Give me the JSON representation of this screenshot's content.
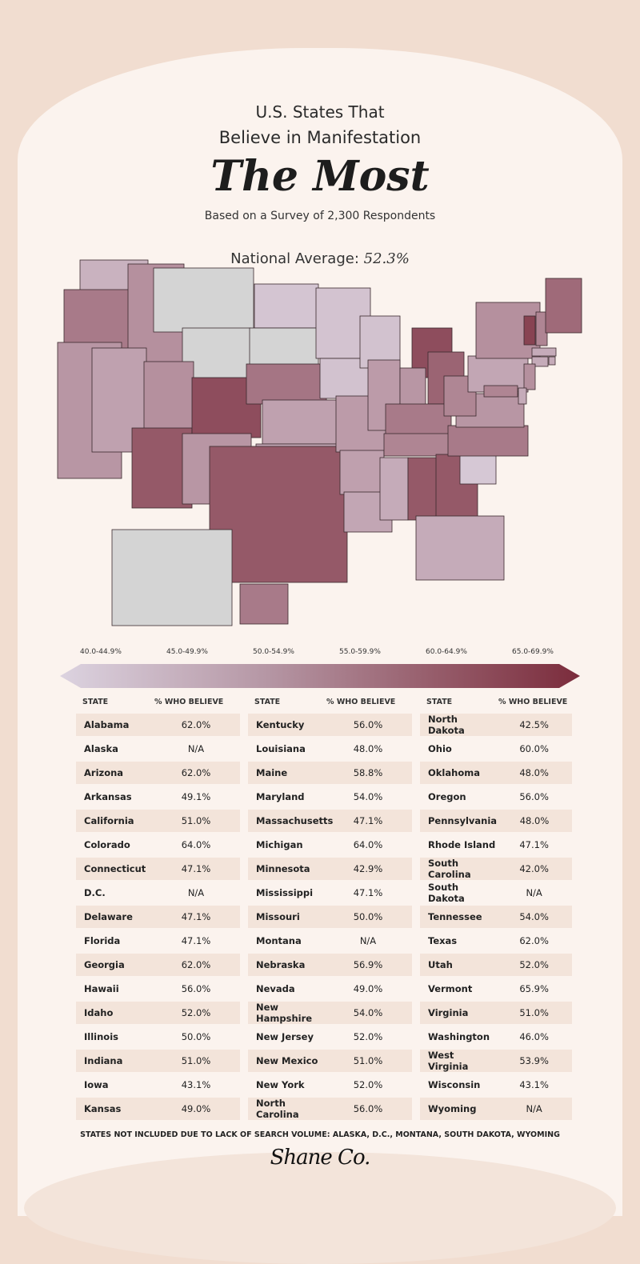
{
  "header": {
    "line1": "U.S. States That",
    "line2": "Believe in Manifestation",
    "line3": "The Most",
    "subtitle": "Based on a Survey of 2,300 Respondents",
    "national_label": "National Average:",
    "national_value": "52.3%"
  },
  "legend": {
    "ranges": [
      "40.0-44.9%",
      "45.0-49.9%",
      "50.0-54.9%",
      "55.0-59.9%",
      "60.0-64.9%",
      "65.0-69.9%"
    ],
    "color_low": "#dcd3e0",
    "color_high": "#7b2c3c",
    "na_color": "#d4d4d4"
  },
  "table": {
    "col_state": "STATE",
    "col_value": "% WHO BELIEVE",
    "rows": [
      [
        "Alabama",
        "62.0%"
      ],
      [
        "Alaska",
        "N/A"
      ],
      [
        "Arizona",
        "62.0%"
      ],
      [
        "Arkansas",
        "49.1%"
      ],
      [
        "California",
        "51.0%"
      ],
      [
        "Colorado",
        "64.0%"
      ],
      [
        "Connecticut",
        "47.1%"
      ],
      [
        "D.C.",
        "N/A"
      ],
      [
        "Delaware",
        "47.1%"
      ],
      [
        "Florida",
        "47.1%"
      ],
      [
        "Georgia",
        "62.0%"
      ],
      [
        "Hawaii",
        "56.0%"
      ],
      [
        "Idaho",
        "52.0%"
      ],
      [
        "Illinois",
        "50.0%"
      ],
      [
        "Indiana",
        "51.0%"
      ],
      [
        "Iowa",
        "43.1%"
      ],
      [
        "Kansas",
        "49.0%"
      ],
      [
        "Kentucky",
        "56.0%"
      ],
      [
        "Louisiana",
        "48.0%"
      ],
      [
        "Maine",
        "58.8%"
      ],
      [
        "Maryland",
        "54.0%"
      ],
      [
        "Massachusetts",
        "47.1%"
      ],
      [
        "Michigan",
        "64.0%"
      ],
      [
        "Minnesota",
        "42.9%"
      ],
      [
        "Mississippi",
        "47.1%"
      ],
      [
        "Missouri",
        "50.0%"
      ],
      [
        "Montana",
        "N/A"
      ],
      [
        "Nebraska",
        "56.9%"
      ],
      [
        "Nevada",
        "49.0%"
      ],
      [
        "New Hampshire",
        "54.0%"
      ],
      [
        "New Jersey",
        "52.0%"
      ],
      [
        "New Mexico",
        "51.0%"
      ],
      [
        "New York",
        "52.0%"
      ],
      [
        "North Carolina",
        "56.0%"
      ],
      [
        "North Dakota",
        "42.5%"
      ],
      [
        "Ohio",
        "60.0%"
      ],
      [
        "Oklahoma",
        "48.0%"
      ],
      [
        "Oregon",
        "56.0%"
      ],
      [
        "Pennsylvania",
        "48.0%"
      ],
      [
        "Rhode Island",
        "47.1%"
      ],
      [
        "South Carolina",
        "42.0%"
      ],
      [
        "South Dakota",
        "N/A"
      ],
      [
        "Tennessee",
        "54.0%"
      ],
      [
        "Texas",
        "62.0%"
      ],
      [
        "Utah",
        "52.0%"
      ],
      [
        "Vermont",
        "65.9%"
      ],
      [
        "Virginia",
        "51.0%"
      ],
      [
        "Washington",
        "46.0%"
      ],
      [
        "West Virginia",
        "53.9%"
      ],
      [
        "Wisconsin",
        "43.1%"
      ],
      [
        "Wyoming",
        "N/A"
      ]
    ]
  },
  "chart_data": {
    "type": "choropleth",
    "value_range": [
      40,
      70
    ],
    "source_table": "table.rows"
  },
  "footnote": "STATES NOT INCLUDED DUE TO LACK OF SEARCH VOLUME: ALASKA, D.C., MONTANA, SOUTH DAKOTA, WYOMING",
  "brand": "Shane Co."
}
